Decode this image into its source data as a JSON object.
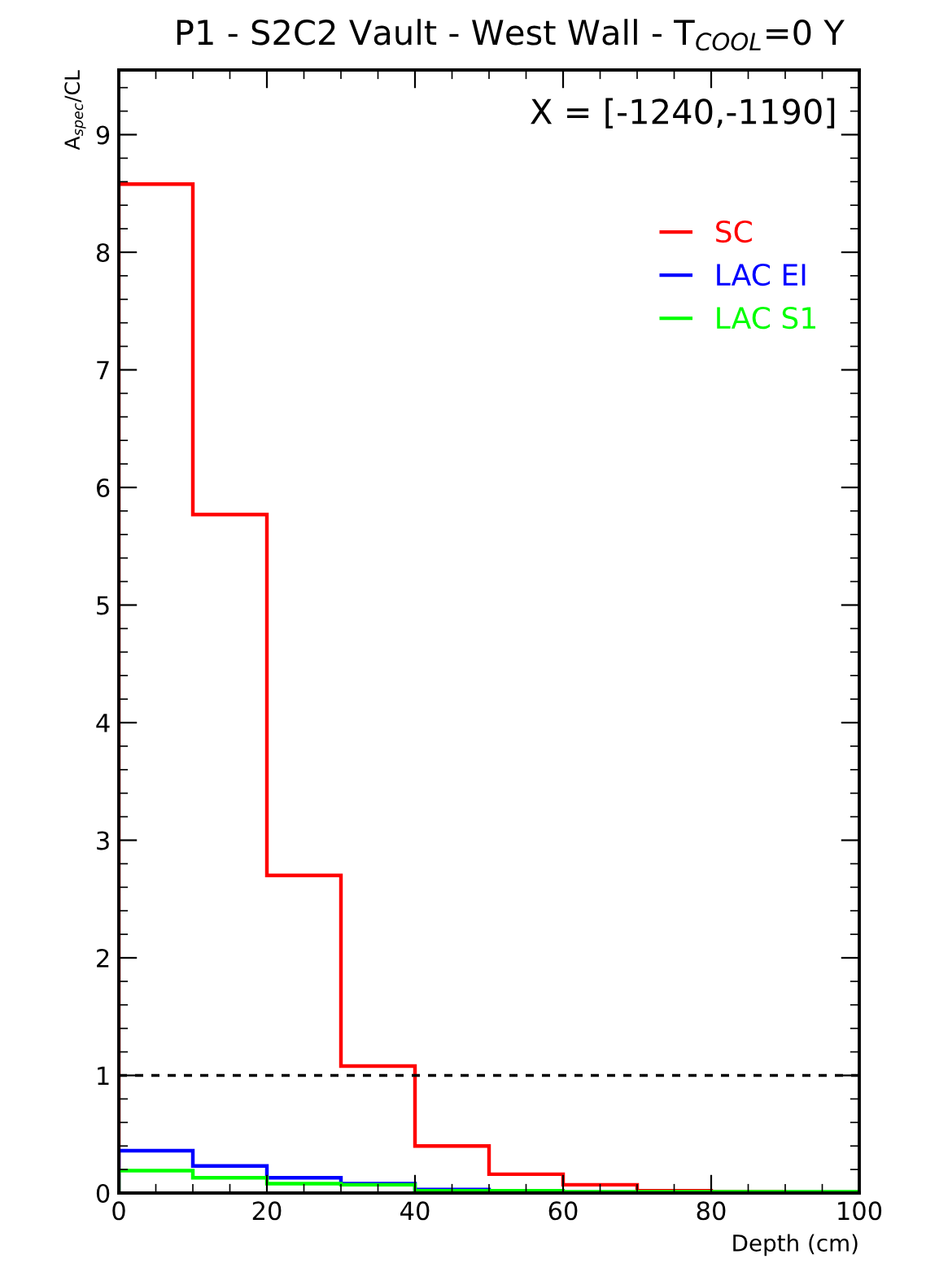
{
  "chart_data": {
    "type": "histogram",
    "title": "P1 - S2C2 Vault - West Wall - T$_{COOL}$=0 Y",
    "xlabel": "Depth (cm)",
    "ylabel": "A$_{spec}$/CL",
    "annotations": [
      "X = [-1240,-1190]"
    ],
    "bins": [
      0,
      10,
      20,
      30,
      40,
      50,
      60,
      70,
      80,
      90,
      100
    ],
    "series": [
      {
        "name": "SC",
        "color": "#ff0000",
        "values": [
          8.58,
          5.77,
          2.7,
          1.08,
          0.4,
          0.16,
          0.07,
          0.02,
          0.01,
          0.0
        ]
      },
      {
        "name": "LAC EI",
        "color": "#0000ff",
        "bins": [
          0,
          10,
          20,
          30,
          40,
          50
        ],
        "values": [
          0.36,
          0.23,
          0.13,
          0.08,
          0.03
        ]
      },
      {
        "name": "LAC S1",
        "color": "#00ff00",
        "values": [
          0.19,
          0.13,
          0.08,
          0.07,
          0.02,
          0.02,
          0.01,
          0.01,
          0.01,
          0.01
        ]
      }
    ],
    "ref_lines": [
      {
        "axis": "y",
        "value": 1,
        "color": "#000000",
        "line_style": "dashed"
      }
    ],
    "xlim": [
      0,
      100
    ],
    "xticks": [
      0,
      20,
      40,
      60,
      80,
      100
    ],
    "ylim": [
      0,
      9.55
    ],
    "yticks": [
      0,
      1,
      2,
      3,
      4,
      5,
      6,
      7,
      8,
      9
    ],
    "grid": false,
    "legend": "top right"
  }
}
